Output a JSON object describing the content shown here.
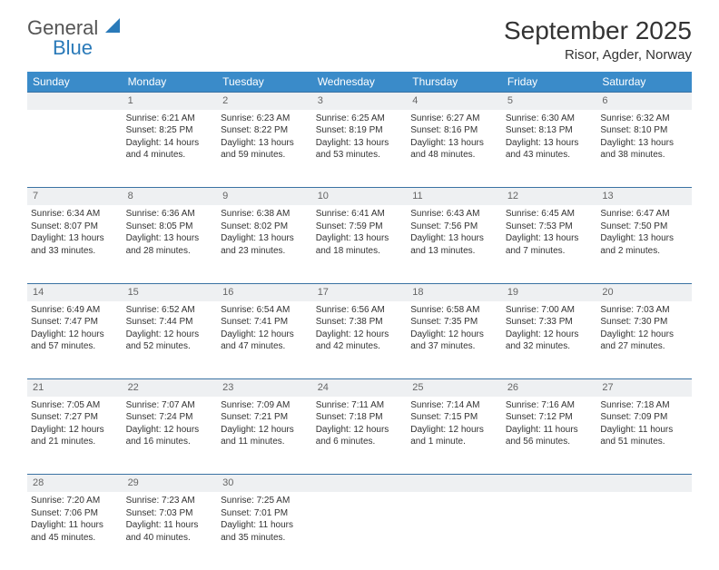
{
  "logo": {
    "text_general": "General",
    "text_blue": "Blue"
  },
  "title": "September 2025",
  "location": "Risor, Agder, Norway",
  "colors": {
    "header_bg": "#3a8bc9",
    "header_text": "#ffffff",
    "daynum_bg": "#eef0f2",
    "daynum_border": "#3a72a3",
    "text": "#333333",
    "logo_gray": "#555555",
    "logo_blue": "#2a7ab9",
    "background": "#ffffff"
  },
  "weekdays": [
    "Sunday",
    "Monday",
    "Tuesday",
    "Wednesday",
    "Thursday",
    "Friday",
    "Saturday"
  ],
  "weeks": [
    {
      "nums": [
        "",
        "1",
        "2",
        "3",
        "4",
        "5",
        "6"
      ],
      "cells": [
        [],
        [
          "Sunrise: 6:21 AM",
          "Sunset: 8:25 PM",
          "Daylight: 14 hours",
          "and 4 minutes."
        ],
        [
          "Sunrise: 6:23 AM",
          "Sunset: 8:22 PM",
          "Daylight: 13 hours",
          "and 59 minutes."
        ],
        [
          "Sunrise: 6:25 AM",
          "Sunset: 8:19 PM",
          "Daylight: 13 hours",
          "and 53 minutes."
        ],
        [
          "Sunrise: 6:27 AM",
          "Sunset: 8:16 PM",
          "Daylight: 13 hours",
          "and 48 minutes."
        ],
        [
          "Sunrise: 6:30 AM",
          "Sunset: 8:13 PM",
          "Daylight: 13 hours",
          "and 43 minutes."
        ],
        [
          "Sunrise: 6:32 AM",
          "Sunset: 8:10 PM",
          "Daylight: 13 hours",
          "and 38 minutes."
        ]
      ]
    },
    {
      "nums": [
        "7",
        "8",
        "9",
        "10",
        "11",
        "12",
        "13"
      ],
      "cells": [
        [
          "Sunrise: 6:34 AM",
          "Sunset: 8:07 PM",
          "Daylight: 13 hours",
          "and 33 minutes."
        ],
        [
          "Sunrise: 6:36 AM",
          "Sunset: 8:05 PM",
          "Daylight: 13 hours",
          "and 28 minutes."
        ],
        [
          "Sunrise: 6:38 AM",
          "Sunset: 8:02 PM",
          "Daylight: 13 hours",
          "and 23 minutes."
        ],
        [
          "Sunrise: 6:41 AM",
          "Sunset: 7:59 PM",
          "Daylight: 13 hours",
          "and 18 minutes."
        ],
        [
          "Sunrise: 6:43 AM",
          "Sunset: 7:56 PM",
          "Daylight: 13 hours",
          "and 13 minutes."
        ],
        [
          "Sunrise: 6:45 AM",
          "Sunset: 7:53 PM",
          "Daylight: 13 hours",
          "and 7 minutes."
        ],
        [
          "Sunrise: 6:47 AM",
          "Sunset: 7:50 PM",
          "Daylight: 13 hours",
          "and 2 minutes."
        ]
      ]
    },
    {
      "nums": [
        "14",
        "15",
        "16",
        "17",
        "18",
        "19",
        "20"
      ],
      "cells": [
        [
          "Sunrise: 6:49 AM",
          "Sunset: 7:47 PM",
          "Daylight: 12 hours",
          "and 57 minutes."
        ],
        [
          "Sunrise: 6:52 AM",
          "Sunset: 7:44 PM",
          "Daylight: 12 hours",
          "and 52 minutes."
        ],
        [
          "Sunrise: 6:54 AM",
          "Sunset: 7:41 PM",
          "Daylight: 12 hours",
          "and 47 minutes."
        ],
        [
          "Sunrise: 6:56 AM",
          "Sunset: 7:38 PM",
          "Daylight: 12 hours",
          "and 42 minutes."
        ],
        [
          "Sunrise: 6:58 AM",
          "Sunset: 7:35 PM",
          "Daylight: 12 hours",
          "and 37 minutes."
        ],
        [
          "Sunrise: 7:00 AM",
          "Sunset: 7:33 PM",
          "Daylight: 12 hours",
          "and 32 minutes."
        ],
        [
          "Sunrise: 7:03 AM",
          "Sunset: 7:30 PM",
          "Daylight: 12 hours",
          "and 27 minutes."
        ]
      ]
    },
    {
      "nums": [
        "21",
        "22",
        "23",
        "24",
        "25",
        "26",
        "27"
      ],
      "cells": [
        [
          "Sunrise: 7:05 AM",
          "Sunset: 7:27 PM",
          "Daylight: 12 hours",
          "and 21 minutes."
        ],
        [
          "Sunrise: 7:07 AM",
          "Sunset: 7:24 PM",
          "Daylight: 12 hours",
          "and 16 minutes."
        ],
        [
          "Sunrise: 7:09 AM",
          "Sunset: 7:21 PM",
          "Daylight: 12 hours",
          "and 11 minutes."
        ],
        [
          "Sunrise: 7:11 AM",
          "Sunset: 7:18 PM",
          "Daylight: 12 hours",
          "and 6 minutes."
        ],
        [
          "Sunrise: 7:14 AM",
          "Sunset: 7:15 PM",
          "Daylight: 12 hours",
          "and 1 minute."
        ],
        [
          "Sunrise: 7:16 AM",
          "Sunset: 7:12 PM",
          "Daylight: 11 hours",
          "and 56 minutes."
        ],
        [
          "Sunrise: 7:18 AM",
          "Sunset: 7:09 PM",
          "Daylight: 11 hours",
          "and 51 minutes."
        ]
      ]
    },
    {
      "nums": [
        "28",
        "29",
        "30",
        "",
        "",
        "",
        ""
      ],
      "cells": [
        [
          "Sunrise: 7:20 AM",
          "Sunset: 7:06 PM",
          "Daylight: 11 hours",
          "and 45 minutes."
        ],
        [
          "Sunrise: 7:23 AM",
          "Sunset: 7:03 PM",
          "Daylight: 11 hours",
          "and 40 minutes."
        ],
        [
          "Sunrise: 7:25 AM",
          "Sunset: 7:01 PM",
          "Daylight: 11 hours",
          "and 35 minutes."
        ],
        [],
        [],
        [],
        []
      ]
    }
  ]
}
